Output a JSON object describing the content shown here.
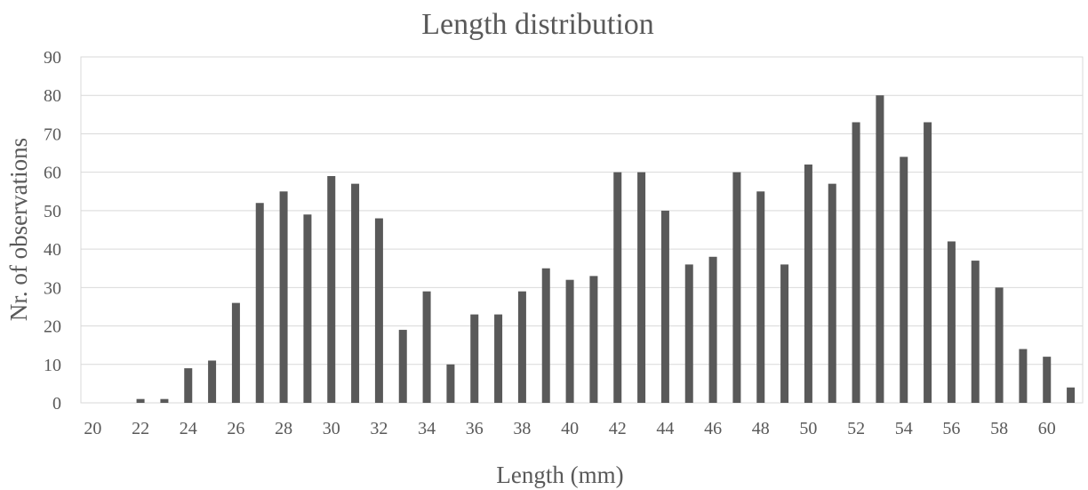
{
  "chart_data": {
    "type": "bar",
    "title": "Length distribution",
    "xlabel": "Length (mm)",
    "ylabel": "Nr. of observations",
    "ylim": [
      0,
      90
    ],
    "yticks": [
      "0",
      "10",
      "20",
      "30",
      "40",
      "50",
      "60",
      "70",
      "80",
      "90"
    ],
    "xtick_labels": [
      "20",
      "22",
      "24",
      "26",
      "28",
      "30",
      "32",
      "34",
      "36",
      "38",
      "40",
      "42",
      "44",
      "46",
      "48",
      "50",
      "52",
      "54",
      "56",
      "58",
      "60"
    ],
    "categories": [
      20,
      21,
      22,
      23,
      24,
      25,
      26,
      27,
      28,
      29,
      30,
      31,
      32,
      33,
      34,
      35,
      36,
      37,
      38,
      39,
      40,
      41,
      42,
      43,
      44,
      45,
      46,
      47,
      48,
      49,
      50,
      51,
      52,
      53,
      54,
      55,
      56,
      57,
      58,
      59,
      60,
      61
    ],
    "values": [
      0,
      0,
      1,
      1,
      9,
      11,
      26,
      52,
      55,
      49,
      59,
      57,
      48,
      19,
      29,
      10,
      23,
      23,
      29,
      35,
      32,
      33,
      60,
      60,
      50,
      36,
      38,
      60,
      55,
      36,
      62,
      57,
      73,
      80,
      64,
      73,
      42,
      37,
      30,
      14,
      12,
      4
    ],
    "grid": true,
    "legend": "none",
    "bar_color": "#595959"
  }
}
